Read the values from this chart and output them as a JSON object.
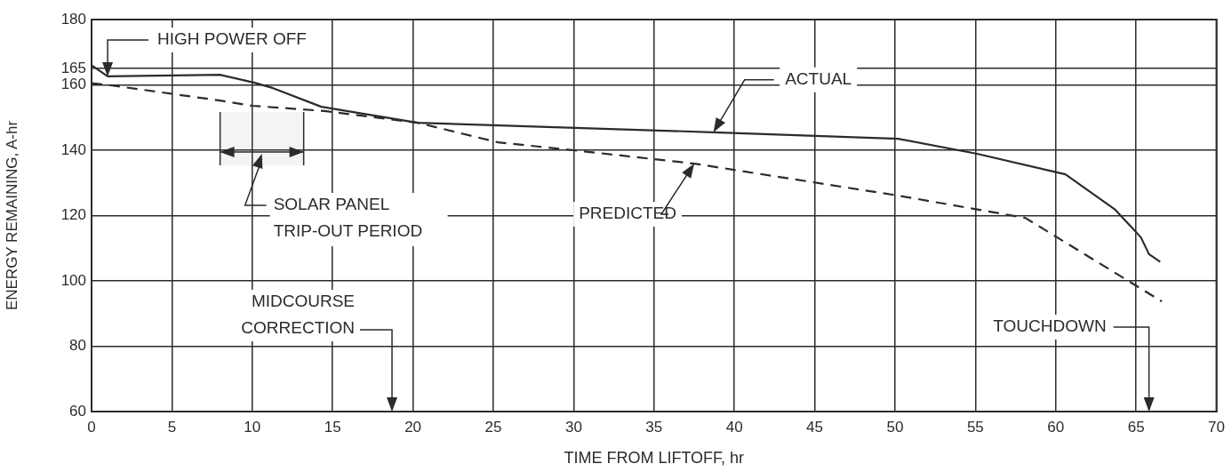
{
  "chart_data": {
    "type": "line",
    "xlabel": "TIME FROM LIFTOFF, hr",
    "ylabel": "ENERGY REMAINING, A-hr",
    "xlim": [
      0,
      70
    ],
    "xticks": [
      0,
      5,
      10,
      15,
      20,
      25,
      30,
      35,
      40,
      45,
      50,
      55,
      60,
      65,
      70
    ],
    "ylim": [
      60,
      180
    ],
    "yticks": [
      60,
      80,
      100,
      120,
      140,
      160,
      165,
      180
    ],
    "grid": true,
    "legend": false,
    "marker": "none",
    "series": [
      {
        "color": "#2b2b2b",
        "line_style": "solid",
        "x": [
          0,
          1,
          8,
          10.1,
          11.3,
          14.3,
          20.3,
          25.4,
          38.7,
          50.2,
          55.1,
          60.6,
          63.7,
          65.3,
          65.8,
          66.5
        ],
        "values": [
          166,
          162.6,
          163.1,
          160.7,
          159,
          153.3,
          148.4,
          147.6,
          145.5,
          143.5,
          138.9,
          132.6,
          121.8,
          113.3,
          108.2,
          105.8
        ]
      },
      {
        "color": "#2b2b2b",
        "line_style": "dashed",
        "x": [
          0,
          1,
          8,
          10,
          14.5,
          20.3,
          25.3,
          30,
          37.5,
          50.2,
          58.1,
          66.6
        ],
        "values": [
          160.5,
          160,
          155.2,
          153.6,
          152,
          148.4,
          142.4,
          140,
          135.9,
          126.1,
          119.3,
          93.7
        ]
      }
    ],
    "bands": [
      {
        "axis": "x",
        "from": 8,
        "to": 13.2,
        "label": "SOLAR PANEL\nTRIP-OUT PERIOD"
      }
    ],
    "annotations": [
      {
        "text": "HIGH POWER OFF",
        "x": 1,
        "y": 162.6
      },
      {
        "text": "ACTUAL",
        "x": 38.7,
        "y": 145.5
      },
      {
        "text": "PREDICTED",
        "x": 37.5,
        "y": 135.9
      },
      "MIDCOURSE\nCORRECTION",
      "TOUCHDOWN"
    ]
  }
}
